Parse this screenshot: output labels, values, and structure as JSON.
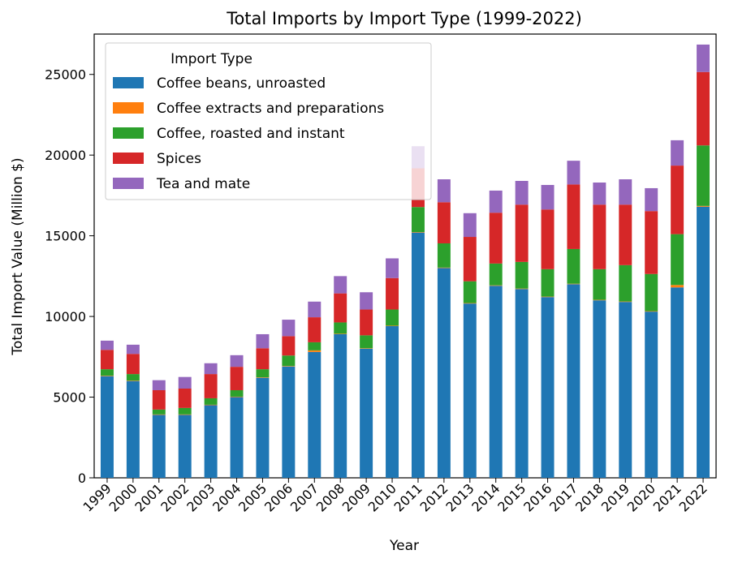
{
  "chart_data": {
    "type": "bar",
    "stacked": true,
    "title": "Total Imports by Import Type (1999-2022)",
    "xlabel": "Year",
    "ylabel": "Total Import Value (Million $)",
    "ylim": [
      0,
      27500
    ],
    "yticks": [
      0,
      5000,
      10000,
      15000,
      20000,
      25000
    ],
    "grid": false,
    "legend_title": "Import Type",
    "legend_position": "top-left",
    "categories": [
      "1999",
      "2000",
      "2001",
      "2002",
      "2003",
      "2004",
      "2005",
      "2006",
      "2007",
      "2008",
      "2009",
      "2010",
      "2011",
      "2012",
      "2013",
      "2014",
      "2015",
      "2016",
      "2017",
      "2018",
      "2019",
      "2020",
      "2021",
      "2022"
    ],
    "series": [
      {
        "name": "Coffee beans, unroasted",
        "color": "#1f77b4",
        "values": [
          6300,
          6000,
          3900,
          3900,
          4500,
          5000,
          6200,
          6900,
          7800,
          8900,
          8000,
          9400,
          15200,
          13000,
          10800,
          11900,
          11700,
          11200,
          12000,
          11000,
          10900,
          10300,
          11800,
          16800
        ]
      },
      {
        "name": "Coffee extracts and preparations",
        "color": "#ff7f0e",
        "values": [
          30,
          30,
          30,
          30,
          30,
          30,
          30,
          30,
          100,
          30,
          30,
          30,
          30,
          30,
          30,
          30,
          30,
          30,
          30,
          30,
          30,
          30,
          150,
          50
        ]
      },
      {
        "name": "Coffee, roasted and instant",
        "color": "#2ca02c",
        "values": [
          400,
          400,
          300,
          400,
          400,
          400,
          500,
          650,
          500,
          700,
          800,
          1000,
          1550,
          1500,
          1350,
          1350,
          1650,
          1700,
          2150,
          1900,
          2250,
          2300,
          3150,
          3750
        ]
      },
      {
        "name": "Spices",
        "color": "#d62728",
        "values": [
          1200,
          1250,
          1200,
          1200,
          1500,
          1450,
          1300,
          1200,
          1550,
          1800,
          1600,
          1950,
          2400,
          2550,
          2750,
          3150,
          3550,
          3700,
          4000,
          4000,
          3750,
          3900,
          4250,
          4550
        ]
      },
      {
        "name": "Tea and mate",
        "color": "#9467bd",
        "values": [
          570,
          570,
          620,
          720,
          670,
          720,
          870,
          1020,
          970,
          1070,
          1070,
          1220,
          1370,
          1420,
          1470,
          1370,
          1470,
          1520,
          1470,
          1370,
          1570,
          1420,
          1570,
          1700
        ]
      }
    ]
  }
}
